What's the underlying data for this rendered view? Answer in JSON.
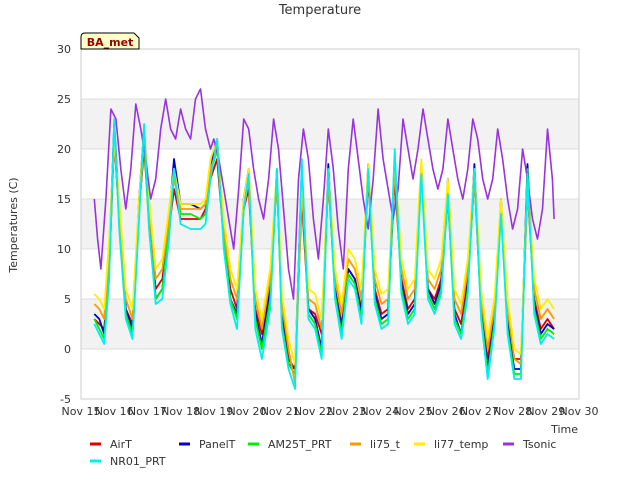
{
  "chart_data": {
    "type": "line",
    "title": "Temperature",
    "xlabel": "Time",
    "ylabel": "Temperatures (C)",
    "badge": "BA_met",
    "xlim": [
      15,
      30
    ],
    "ylim": [
      -5,
      30
    ],
    "x_ticks": [
      {
        "v": 15,
        "label": "Nov 15"
      },
      {
        "v": 16,
        "label": "Nov 16"
      },
      {
        "v": 17,
        "label": "Nov 17"
      },
      {
        "v": 18,
        "label": "Nov 18"
      },
      {
        "v": 19,
        "label": "Nov 19"
      },
      {
        "v": 20,
        "label": "Nov 20"
      },
      {
        "v": 21,
        "label": "Nov 21"
      },
      {
        "v": 22,
        "label": "Nov 22"
      },
      {
        "v": 23,
        "label": "Nov 23"
      },
      {
        "v": 24,
        "label": "Nov 24"
      },
      {
        "v": 25,
        "label": "Nov 25"
      },
      {
        "v": 26,
        "label": "Nov 26"
      },
      {
        "v": 27,
        "label": "Nov 27"
      },
      {
        "v": 28,
        "label": "Nov 28"
      },
      {
        "v": 29,
        "label": "Nov 29"
      },
      {
        "v": 30,
        "label": "Nov 30"
      }
    ],
    "y_ticks": [
      -5,
      0,
      5,
      10,
      15,
      20,
      25,
      30
    ],
    "grid": true,
    "legend_position": "bottom",
    "x_unit": "day of November",
    "series": [
      {
        "name": "AirT",
        "color": "#dd0000",
        "x": [
          15.4,
          15.55,
          15.7,
          15.85,
          16.0,
          16.15,
          16.35,
          16.55,
          16.75,
          16.9,
          17.05,
          17.25,
          17.45,
          17.65,
          17.8,
          18.0,
          18.3,
          18.6,
          18.75,
          18.9,
          19.1,
          19.3,
          19.5,
          19.7,
          19.9,
          20.05,
          20.25,
          20.45,
          20.7,
          20.9,
          21.05,
          21.25,
          21.45,
          21.65,
          21.85,
          22.05,
          22.25,
          22.45,
          22.65,
          22.85,
          23.05,
          23.25,
          23.45,
          23.65,
          23.85,
          24.05,
          24.25,
          24.45,
          24.65,
          24.85,
          25.05,
          25.25,
          25.45,
          25.65,
          25.85,
          26.05,
          26.25,
          26.45,
          26.65,
          26.85,
          27.05,
          27.25,
          27.45,
          27.65,
          27.85,
          28.05,
          28.25,
          28.45,
          28.65,
          28.85,
          29.05,
          29.25
        ],
        "y": [
          3,
          2.5,
          2,
          8,
          21,
          13,
          4,
          2.5,
          14,
          20,
          13,
          6,
          7,
          12,
          16,
          13,
          13,
          13,
          14,
          17,
          19,
          11,
          6,
          4,
          14,
          16,
          4,
          1.5,
          6,
          17,
          4,
          -1,
          -2,
          15,
          4,
          3.5,
          1.5,
          17,
          6,
          2.5,
          8,
          7,
          4,
          17,
          6,
          3.5,
          4,
          17,
          7,
          4,
          5,
          18,
          6,
          5,
          7,
          15,
          4,
          2.5,
          7,
          17,
          4,
          -1,
          3,
          14,
          3,
          -1,
          -1,
          16,
          5,
          2,
          3,
          2
        ]
      },
      {
        "name": "PanelT",
        "color": "#0000cc",
        "x": [
          15.4,
          15.55,
          15.7,
          15.85,
          16.0,
          16.15,
          16.35,
          16.55,
          16.75,
          16.9,
          17.05,
          17.25,
          17.45,
          17.65,
          17.8,
          18.0,
          18.3,
          18.6,
          18.75,
          18.9,
          19.1,
          19.3,
          19.5,
          19.7,
          19.9,
          20.05,
          20.25,
          20.45,
          20.7,
          20.9,
          21.05,
          21.25,
          21.45,
          21.65,
          21.85,
          22.05,
          22.25,
          22.45,
          22.65,
          22.85,
          23.05,
          23.25,
          23.45,
          23.65,
          23.85,
          24.05,
          24.25,
          24.45,
          24.65,
          24.85,
          25.05,
          25.25,
          25.45,
          25.65,
          25.85,
          26.05,
          26.25,
          26.45,
          26.65,
          26.85,
          27.05,
          27.25,
          27.45,
          27.65,
          27.85,
          28.05,
          28.25,
          28.45,
          28.65,
          28.85,
          29.05,
          29.25
        ],
        "y": [
          3.5,
          3,
          1.5,
          9,
          22.5,
          14,
          4,
          2,
          15,
          22,
          14,
          5,
          6,
          13,
          19,
          14.5,
          14.5,
          14,
          14.5,
          18,
          21,
          12,
          5,
          3.5,
          15,
          18,
          3.5,
          0.5,
          6,
          18,
          3,
          -1.5,
          -2,
          18,
          4,
          3,
          0,
          18.5,
          6,
          2,
          8,
          7,
          3.5,
          18.5,
          5.5,
          3,
          3.5,
          19,
          6.5,
          3.5,
          4.5,
          18.5,
          6,
          4.5,
          6.5,
          17,
          3.5,
          1.5,
          6.5,
          18.5,
          4,
          -2,
          3,
          15,
          2.5,
          -2,
          -2,
          18.5,
          4.5,
          1.5,
          2.5,
          2
        ]
      },
      {
        "name": "AM25T_PRT",
        "color": "#00ee00",
        "x": [
          15.4,
          15.55,
          15.7,
          15.85,
          16.0,
          16.15,
          16.35,
          16.55,
          16.75,
          16.9,
          17.05,
          17.25,
          17.45,
          17.65,
          17.8,
          18.0,
          18.3,
          18.6,
          18.75,
          18.9,
          19.1,
          19.3,
          19.5,
          19.7,
          19.9,
          20.05,
          20.25,
          20.45,
          20.7,
          20.9,
          21.05,
          21.25,
          21.45,
          21.65,
          21.85,
          22.05,
          22.25,
          22.45,
          22.65,
          22.85,
          23.05,
          23.25,
          23.45,
          23.65,
          23.85,
          24.05,
          24.25,
          24.45,
          24.65,
          24.85,
          25.05,
          25.25,
          25.45,
          25.65,
          25.85,
          26.05,
          26.25,
          26.45,
          26.65,
          26.85,
          27.05,
          27.25,
          27.45,
          27.65,
          27.85,
          28.05,
          28.25,
          28.45,
          28.65,
          28.85,
          29.05,
          29.25
        ],
        "y": [
          3,
          2,
          1,
          8,
          22,
          13,
          3.5,
          1.5,
          14,
          21,
          12,
          5,
          6,
          12,
          18,
          13.5,
          13.5,
          13,
          13.5,
          17.5,
          20,
          11,
          5,
          3,
          14,
          17,
          3,
          0,
          5,
          17.5,
          2.5,
          -1.5,
          -2.5,
          17,
          3.5,
          2.5,
          -0.5,
          17.5,
          5.5,
          1.5,
          7.5,
          6.5,
          3,
          18,
          5,
          2.5,
          3,
          18.5,
          6,
          3,
          4,
          18,
          5.5,
          4,
          6,
          16,
          3,
          1.5,
          6,
          18,
          3.5,
          -2.5,
          2.5,
          14.5,
          2,
          -2.5,
          -2.5,
          18,
          4,
          1,
          2,
          1.5
        ]
      },
      {
        "name": "li75_t",
        "color": "#ff9900",
        "x": [
          15.4,
          15.55,
          15.7,
          15.85,
          16.0,
          16.15,
          16.35,
          16.55,
          16.75,
          16.9,
          17.05,
          17.25,
          17.45,
          17.65,
          17.8,
          18.0,
          18.3,
          18.6,
          18.75,
          18.9,
          19.1,
          19.3,
          19.5,
          19.7,
          19.9,
          20.05,
          20.25,
          20.45,
          20.7,
          20.9,
          21.05,
          21.25,
          21.45,
          21.65,
          21.85,
          22.05,
          22.25,
          22.45,
          22.65,
          22.85,
          23.05,
          23.25,
          23.45,
          23.65,
          23.85,
          24.05,
          24.25,
          24.45,
          24.65,
          24.85,
          25.05,
          25.25,
          25.45,
          25.65,
          25.85,
          26.05,
          26.25,
          26.45,
          26.65,
          26.85,
          27.05,
          27.25,
          27.45,
          27.65,
          27.85,
          28.05,
          28.25,
          28.45,
          28.65,
          28.85,
          29.05,
          29.25
        ],
        "y": [
          4.5,
          4,
          3,
          10,
          21,
          14,
          5,
          3,
          14,
          21,
          14,
          7,
          8,
          13,
          17,
          14,
          14,
          14,
          14.5,
          18,
          20,
          12,
          7,
          5,
          14,
          17,
          5,
          2,
          7,
          17,
          4.5,
          0,
          -3.5,
          16,
          5,
          4.5,
          2,
          17,
          7,
          3.5,
          9,
          8,
          5,
          17.5,
          7,
          4.5,
          5,
          18,
          8,
          5,
          6,
          18,
          7,
          6,
          8,
          16,
          5,
          3.5,
          8,
          17,
          5,
          0,
          4,
          14,
          4,
          -1,
          -1.5,
          16,
          6,
          3,
          4,
          3
        ]
      },
      {
        "name": "li77_temp",
        "color": "#ffee00",
        "x": [
          15.4,
          15.55,
          15.7,
          15.85,
          16.0,
          16.15,
          16.35,
          16.55,
          16.75,
          16.9,
          17.05,
          17.25,
          17.45,
          17.65,
          17.8,
          18.0,
          18.3,
          18.6,
          18.75,
          18.9,
          19.1,
          19.3,
          19.5,
          19.7,
          19.9,
          20.05,
          20.25,
          20.45,
          20.7,
          20.9,
          21.05,
          21.25,
          21.45,
          21.65,
          21.85,
          22.05,
          22.25,
          22.45,
          22.65,
          22.85,
          23.05,
          23.25,
          23.45,
          23.65,
          23.85,
          24.05,
          24.25,
          24.45,
          24.65,
          24.85,
          25.05,
          25.25,
          25.45,
          25.65,
          25.85,
          26.05,
          26.25,
          26.45,
          26.65,
          26.85,
          27.05,
          27.25,
          27.45,
          27.65,
          27.85,
          28.05,
          28.25,
          28.45,
          28.65,
          28.85,
          29.05,
          29.25
        ],
        "y": [
          5.5,
          5,
          4,
          11,
          21,
          15,
          6,
          4,
          15,
          22,
          15,
          8,
          9,
          14,
          18,
          14.5,
          14.5,
          14.5,
          15,
          19,
          21,
          13,
          8,
          6,
          15,
          18,
          6,
          3,
          8,
          18,
          5.5,
          1,
          -1.5,
          17,
          6,
          5.5,
          3,
          18,
          8,
          4.5,
          10,
          9,
          6,
          18.5,
          8,
          5.5,
          6,
          19,
          9,
          6,
          7,
          19,
          8,
          7,
          9,
          17,
          6,
          4.5,
          9,
          18,
          6,
          1,
          5,
          15,
          5,
          0,
          -0.5,
          17,
          7,
          4,
          5,
          4
        ]
      },
      {
        "name": "Tsonic",
        "color": "#9933dd",
        "x": [
          15.4,
          15.5,
          15.6,
          15.75,
          15.9,
          16.05,
          16.2,
          16.35,
          16.5,
          16.65,
          16.8,
          16.95,
          17.1,
          17.25,
          17.4,
          17.55,
          17.7,
          17.85,
          18.0,
          18.15,
          18.3,
          18.45,
          18.6,
          18.75,
          18.9,
          19.0,
          19.15,
          19.3,
          19.45,
          19.6,
          19.75,
          19.9,
          20.05,
          20.2,
          20.35,
          20.5,
          20.65,
          20.8,
          20.95,
          21.1,
          21.25,
          21.4,
          21.55,
          21.7,
          21.85,
          22.0,
          22.15,
          22.3,
          22.45,
          22.6,
          22.75,
          22.9,
          23.05,
          23.2,
          23.35,
          23.5,
          23.65,
          23.8,
          23.95,
          24.1,
          24.25,
          24.4,
          24.55,
          24.7,
          24.85,
          25.0,
          25.15,
          25.3,
          25.45,
          25.6,
          25.75,
          25.9,
          26.05,
          26.2,
          26.35,
          26.5,
          26.65,
          26.8,
          26.95,
          27.1,
          27.25,
          27.4,
          27.55,
          27.7,
          27.85,
          28.0,
          28.15,
          28.3,
          28.45,
          28.6,
          28.75,
          28.9,
          29.05,
          29.2,
          29.25
        ],
        "y": [
          15,
          11,
          8,
          15,
          24,
          23,
          18,
          14,
          18,
          24.5,
          22,
          19,
          15,
          17,
          22,
          25,
          22,
          21,
          24,
          22,
          21,
          25,
          26,
          22,
          20,
          21,
          19,
          16,
          13,
          10,
          16,
          23,
          22,
          18,
          15,
          13,
          17,
          23,
          20,
          14,
          8,
          5,
          17,
          22,
          19,
          13,
          9,
          15,
          22,
          18,
          12,
          8,
          18,
          23,
          19,
          15,
          12,
          17,
          24,
          19,
          16,
          13,
          16,
          23,
          20,
          17,
          20,
          24,
          21,
          18,
          16,
          18,
          23,
          20,
          17,
          15,
          18,
          23,
          21,
          17,
          15,
          17,
          22,
          19,
          15,
          12,
          14,
          20,
          17,
          13,
          11,
          14,
          22,
          17,
          13
        ]
      },
      {
        "name": "NR01_PRT",
        "color": "#00eeee",
        "x": [
          15.4,
          15.55,
          15.7,
          15.85,
          16.0,
          16.15,
          16.35,
          16.55,
          16.75,
          16.9,
          17.05,
          17.25,
          17.45,
          17.65,
          17.8,
          18.0,
          18.3,
          18.6,
          18.75,
          18.9,
          19.1,
          19.3,
          19.5,
          19.7,
          19.9,
          20.05,
          20.25,
          20.45,
          20.7,
          20.9,
          21.05,
          21.25,
          21.45,
          21.65,
          21.85,
          22.05,
          22.25,
          22.45,
          22.65,
          22.85,
          23.05,
          23.25,
          23.45,
          23.65,
          23.85,
          24.05,
          24.25,
          24.45,
          24.65,
          24.85,
          25.05,
          25.25,
          25.45,
          25.65,
          25.85,
          26.05,
          26.25,
          26.45,
          26.65,
          26.85,
          27.05,
          27.25,
          27.45,
          27.65,
          27.85,
          28.05,
          28.25,
          28.45,
          28.65,
          28.85,
          29.05,
          29.25
        ],
        "y": [
          2.5,
          1.5,
          0.5,
          7,
          23,
          12,
          3,
          1,
          13,
          22.5,
          12,
          4.5,
          5,
          11,
          18,
          12.5,
          12,
          12,
          12.5,
          17,
          21,
          10,
          4.5,
          2,
          14,
          17.5,
          2,
          -1,
          4,
          18,
          2,
          -2,
          -4,
          19,
          3,
          2,
          -1,
          18,
          5,
          1,
          7,
          6,
          2.5,
          18,
          4.5,
          2,
          2.5,
          20,
          5.5,
          2.5,
          3.5,
          17.5,
          5,
          3.5,
          5.5,
          15.5,
          2.5,
          1,
          5.5,
          18,
          3,
          -3,
          2,
          13.5,
          1.5,
          -3,
          -3,
          17.5,
          3.5,
          0.5,
          1.5,
          1
        ]
      }
    ]
  }
}
